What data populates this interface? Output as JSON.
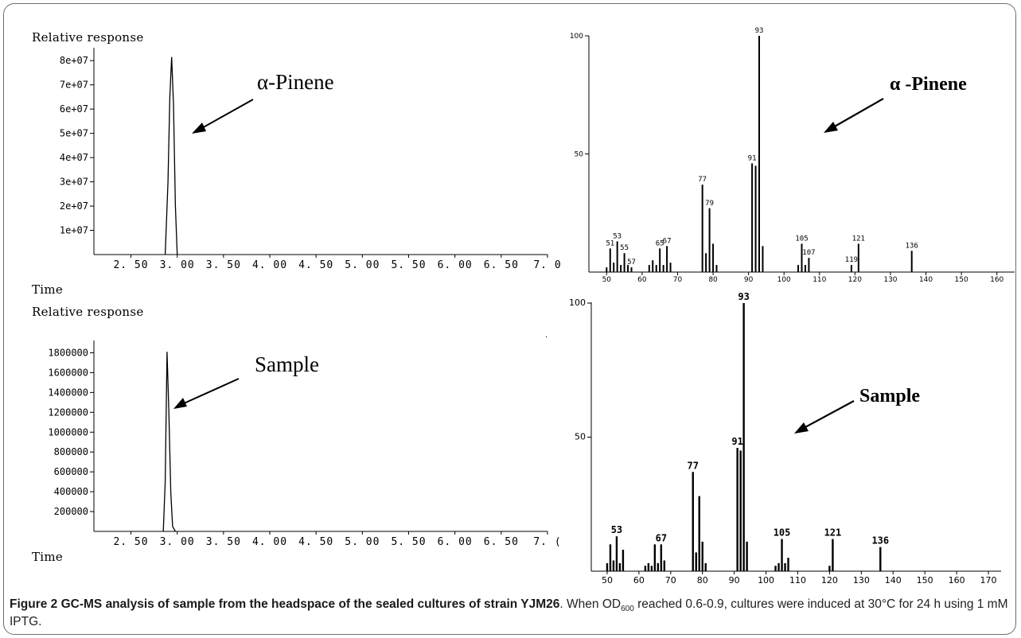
{
  "chart_data": [
    {
      "type": "line",
      "ylabel": "Relative response",
      "xlabel": "Time",
      "annotation": "α-Pinene",
      "y_ticks": [
        "8e+07",
        "7e+07",
        "6e+07",
        "5e+07",
        "4e+07",
        "3e+07",
        "2e+07",
        "1e+07"
      ],
      "y_tick_values": [
        80000000,
        70000000,
        60000000,
        50000000,
        40000000,
        30000000,
        20000000,
        10000000
      ],
      "x_ticks": [
        "2. 50",
        "3. 00",
        "3. 50",
        "4. 00",
        "4. 50",
        "5. 00",
        "5. 50",
        "6. 00",
        "6. 50",
        "7. 0"
      ],
      "x_tick_values": [
        2.5,
        3.0,
        3.5,
        4.0,
        4.5,
        5.0,
        5.5,
        6.0,
        6.5,
        7.0
      ],
      "xlim": [
        2.1,
        7.0
      ],
      "ylim": [
        0,
        84000000
      ],
      "series": [
        {
          "x": [
            2.87,
            2.9,
            2.92,
            2.94,
            2.96,
            2.98,
            3.0
          ],
          "y": [
            0,
            30000000,
            65000000,
            81500000,
            62000000,
            20000000,
            0
          ]
        }
      ]
    },
    {
      "type": "line",
      "ylabel": "Relative response",
      "xlabel": "Time",
      "annotation": "Sample",
      "y_ticks": [
        "1800000",
        "1600000",
        "1400000",
        "1200000",
        "1000000",
        "800000",
        "600000",
        "400000",
        "200000"
      ],
      "y_tick_values": [
        1800000,
        1600000,
        1400000,
        1200000,
        1000000,
        800000,
        600000,
        400000,
        200000
      ],
      "x_ticks": [
        "2. 50",
        "3. 00",
        "3. 50",
        "4. 00",
        "4. 50",
        "5. 00",
        "5. 50",
        "6. 00",
        "6. 50",
        "7. ("
      ],
      "x_tick_values": [
        2.5,
        3.0,
        3.5,
        4.0,
        4.5,
        5.0,
        5.5,
        6.0,
        6.5,
        7.0
      ],
      "xlim": [
        2.1,
        7.0
      ],
      "ylim": [
        0,
        1900000
      ],
      "series": [
        {
          "x": [
            2.85,
            2.87,
            2.89,
            2.91,
            2.93,
            2.95,
            2.98
          ],
          "y": [
            0,
            500000,
            1810000,
            1200000,
            400000,
            50000,
            0
          ]
        }
      ]
    },
    {
      "type": "bar",
      "annotation": "α -Pinene",
      "y_ticks": [
        "100",
        "50"
      ],
      "y_tick_values": [
        100,
        50
      ],
      "x_ticks": [
        "50",
        "60",
        "70",
        "80",
        "90",
        "100",
        "110",
        "120",
        "130",
        "140",
        "150",
        "160"
      ],
      "x_tick_values": [
        50,
        60,
        70,
        80,
        90,
        100,
        110,
        120,
        130,
        140,
        150,
        160
      ],
      "xlim": [
        45,
        165
      ],
      "ylim": [
        0,
        100
      ],
      "peak_labels": [
        "51",
        "53",
        "55",
        "57",
        "65",
        "67",
        "77",
        "79",
        "91",
        "93",
        "105",
        "107",
        "119",
        "121",
        "136"
      ],
      "mz": [
        50,
        51,
        52,
        53,
        54,
        55,
        56,
        57,
        62,
        63,
        64,
        65,
        66,
        67,
        68,
        77,
        78,
        79,
        80,
        81,
        91,
        92,
        93,
        94,
        104,
        105,
        106,
        107,
        119,
        121,
        136
      ],
      "intensity": [
        2,
        10,
        4,
        13,
        3,
        8,
        3,
        2,
        3,
        5,
        3,
        10,
        3,
        11,
        4,
        37,
        8,
        27,
        12,
        3,
        46,
        45,
        100,
        11,
        3,
        12,
        3,
        6,
        3,
        12,
        9
      ]
    },
    {
      "type": "bar",
      "annotation": "Sample",
      "y_ticks": [
        "100",
        "50"
      ],
      "y_tick_values": [
        100,
        50
      ],
      "x_ticks": [
        "50",
        "60",
        "70",
        "80",
        "90",
        "100",
        "110",
        "120",
        "130",
        "140",
        "150",
        "160",
        "170"
      ],
      "x_tick_values": [
        50,
        60,
        70,
        80,
        90,
        100,
        110,
        120,
        130,
        140,
        150,
        160,
        170
      ],
      "xlim": [
        45,
        174
      ],
      "ylim": [
        0,
        100
      ],
      "peak_labels": [
        "53",
        "67",
        "77",
        "91",
        "93",
        "105",
        "121",
        "136"
      ],
      "mz": [
        50,
        51,
        52,
        53,
        54,
        55,
        62,
        63,
        64,
        65,
        66,
        67,
        68,
        77,
        78,
        79,
        80,
        81,
        91,
        92,
        93,
        94,
        103,
        104,
        105,
        106,
        107,
        120,
        121,
        136
      ],
      "intensity": [
        3,
        10,
        4,
        13,
        3,
        8,
        2,
        3,
        2,
        10,
        3,
        10,
        4,
        37,
        7,
        28,
        11,
        3,
        46,
        45,
        100,
        11,
        2,
        3,
        12,
        3,
        5,
        2,
        12,
        9
      ]
    }
  ],
  "cursor_glyph": "·",
  "caption": {
    "title": "Figure 2 GC-MS analysis of sample from the headspace of the sealed cultures of strain YJM26",
    "text_a": ". When OD",
    "sub": "600",
    "text_b": " reached 0.6-0.9, cultures were induced at 30°C for 24 h using 1 mM IPTG."
  }
}
